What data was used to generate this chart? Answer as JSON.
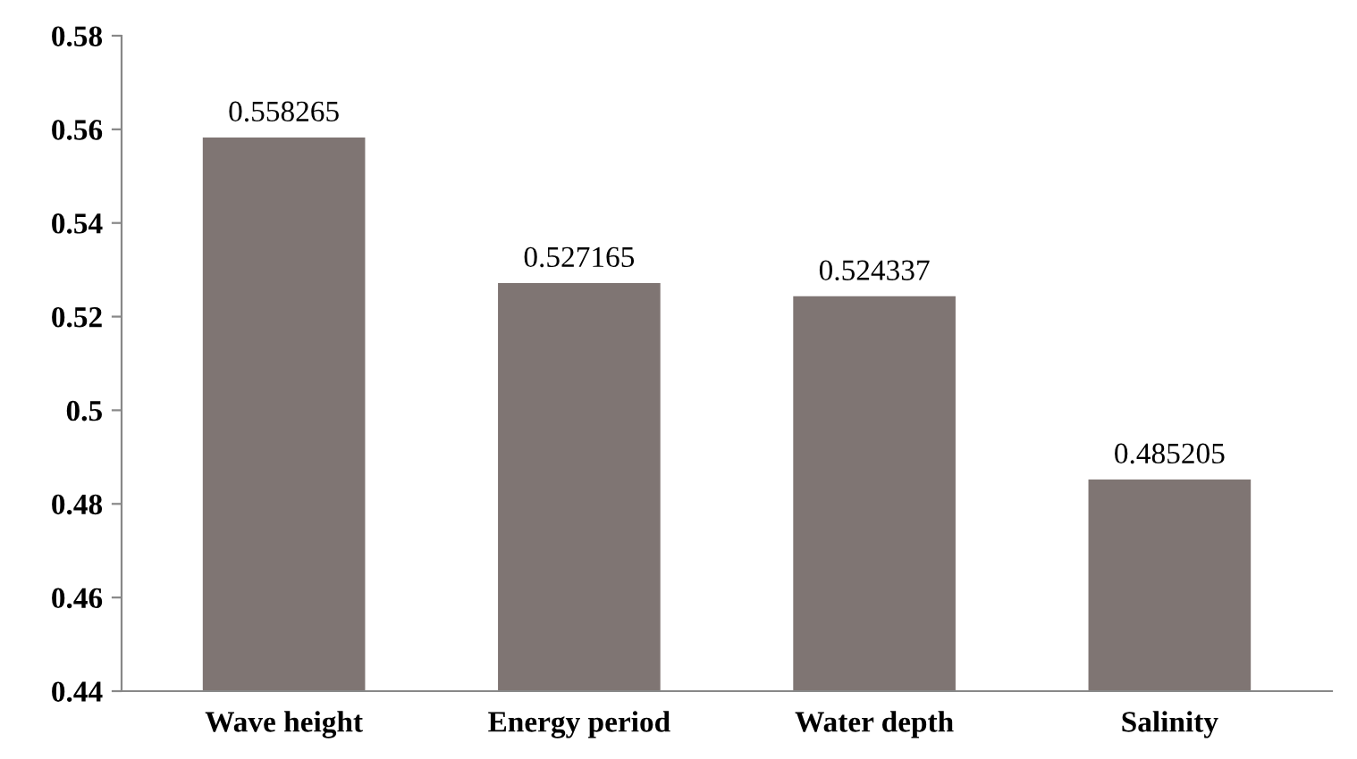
{
  "chart_data": {
    "type": "bar",
    "categories": [
      "Wave height",
      "Energy period",
      "Water depth",
      "Salinity"
    ],
    "values": [
      0.558265,
      0.527165,
      0.524337,
      0.485205
    ],
    "color": "#7f7573",
    "ylim": [
      0.44,
      0.58
    ],
    "yticks": [
      0.44,
      0.46,
      0.48,
      0.5,
      0.52,
      0.54,
      0.56,
      0.58
    ],
    "grid": false,
    "data_labels": true
  }
}
